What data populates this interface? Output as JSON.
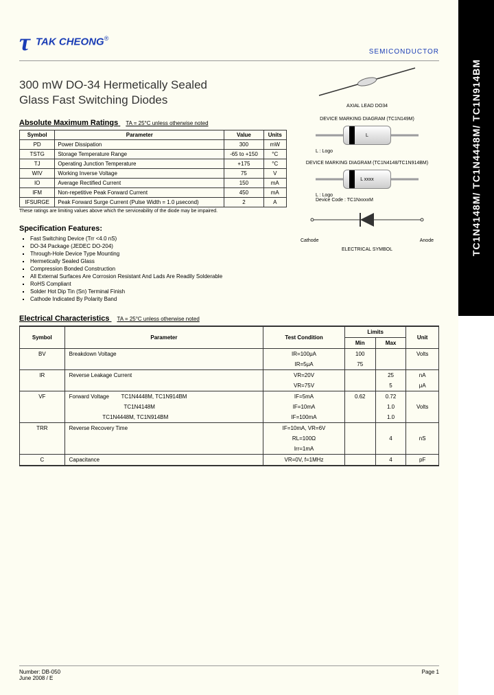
{
  "side_tab": "TC1N4148M/ TC1N4448M/ TC1N914BM",
  "header": {
    "brand": "TAK CHEONG",
    "category": "SEMICONDUCTOR"
  },
  "title": "300 mW DO-34 Hermetically Sealed Glass Fast Switching Diodes",
  "ratings": {
    "title": "Absolute Maximum Ratings",
    "note": "TA = 25°C unless otherwise noted",
    "columns": [
      "Symbol",
      "Parameter",
      "Value",
      "Units"
    ],
    "rows": [
      [
        "PD",
        "Power Dissipation",
        "300",
        "mW"
      ],
      [
        "TSTG",
        "Storage Temperature Range",
        "-65 to +150",
        "°C"
      ],
      [
        "TJ",
        "Operating Junction Temperature",
        "+175",
        "°C"
      ],
      [
        "WIV",
        "Working Inverse Voltage",
        "75",
        "V"
      ],
      [
        "IO",
        "Average Rectified Current",
        "150",
        "mA"
      ],
      [
        "IFM",
        "Non-repetitive Peak Forward Current",
        "450",
        "mA"
      ],
      [
        "IFSURGE",
        "Peak Forward Surge Current (Pulse Width = 1.0 μsecond)",
        "2",
        "A"
      ]
    ],
    "footnote": "These ratings are limiting values above which the serviceability of the diode may be impaired."
  },
  "features": {
    "title": "Specification Features:",
    "items": [
      "Fast Switching Device (Trr <4.0 nS)",
      "DO-34 Package (JEDEC DO-204)",
      "Through-Hole Device Type Mounting",
      "Hermetically Sealed Glass",
      "Compression Bonded Construction",
      "All External Surfaces Are Corrosion Resistant And Lads Are Readily Solderable",
      "RoHS Compliant",
      "Solder Hot Dip Tin (Sn) Terminal Finish",
      "Cathode Indicated By Polarity Band"
    ]
  },
  "diagrams": {
    "axial_label": "AXIAL LEAD DO34",
    "marking1_title": "DEVICE MARKING DIAGRAM (TC1N149M)",
    "marking1_body": "L",
    "marking1_note": "L            : Logo",
    "marking2_title": "DEVICE MARKING DIAGRAM (TC1N4148/TC1N914BM)",
    "marking2_body": "L xxxx",
    "marking2_note1": "L            : Logo",
    "marking2_note2": "Device Code : TC1NxxxxM",
    "symbol_cathode": "Cathode",
    "symbol_anode": "Anode",
    "symbol_label": "ELECTRICAL SYMBOL"
  },
  "electrical": {
    "title": "Electrical Characteristics",
    "note": "TA = 25°C unless otherwise noted",
    "columns": [
      "Symbol",
      "Parameter",
      "Test Condition",
      "Min",
      "Max",
      "Unit"
    ],
    "rows": [
      {
        "sym": "BV",
        "param": "Breakdown Voltage",
        "cond": "IR=100μA",
        "min": "100",
        "max": "",
        "unit": "Volts",
        "sep": true
      },
      {
        "sym": "",
        "param": "",
        "cond": "IR=5μA",
        "min": "75",
        "max": "",
        "unit": ""
      },
      {
        "sym": "IR",
        "param": "Reverse Leakage Current",
        "cond": "VR=20V",
        "min": "",
        "max": "25",
        "unit": "nA",
        "sep": true
      },
      {
        "sym": "",
        "param": "",
        "cond": "VR=75V",
        "min": "",
        "max": "5",
        "unit": "μA"
      },
      {
        "sym": "VF",
        "param": "Forward Voltage        TC1N4448M, TC1N914BM",
        "cond": "IF=5mA",
        "min": "0.62",
        "max": "0.72",
        "unit": "",
        "sep": true
      },
      {
        "sym": "",
        "param": "                                    TC1N4148M",
        "cond": "IF=10mA",
        "min": "",
        "max": "1.0",
        "unit": "Volts"
      },
      {
        "sym": "",
        "param": "                      TC1N4448M, TC1N914BM",
        "cond": "IF=100mA",
        "min": "",
        "max": "1.0",
        "unit": ""
      },
      {
        "sym": "TRR",
        "param": "Reverse Recovery Time",
        "cond": "IF=10mA, VR=6V",
        "min": "",
        "max": "",
        "unit": "",
        "sep": true
      },
      {
        "sym": "",
        "param": "",
        "cond": "RL=100Ω",
        "min": "",
        "max": "4",
        "unit": "nS"
      },
      {
        "sym": "",
        "param": "",
        "cond": "Irr=1mA",
        "min": "",
        "max": "",
        "unit": ""
      },
      {
        "sym": "C",
        "param": "Capacitance",
        "cond": "VR=0V, f=1MHz",
        "min": "",
        "max": "4",
        "unit": "pF",
        "sep": true
      }
    ]
  },
  "footer": {
    "left1": "Number: DB-050",
    "left2": "June 2008 / E",
    "right": "Page 1"
  }
}
